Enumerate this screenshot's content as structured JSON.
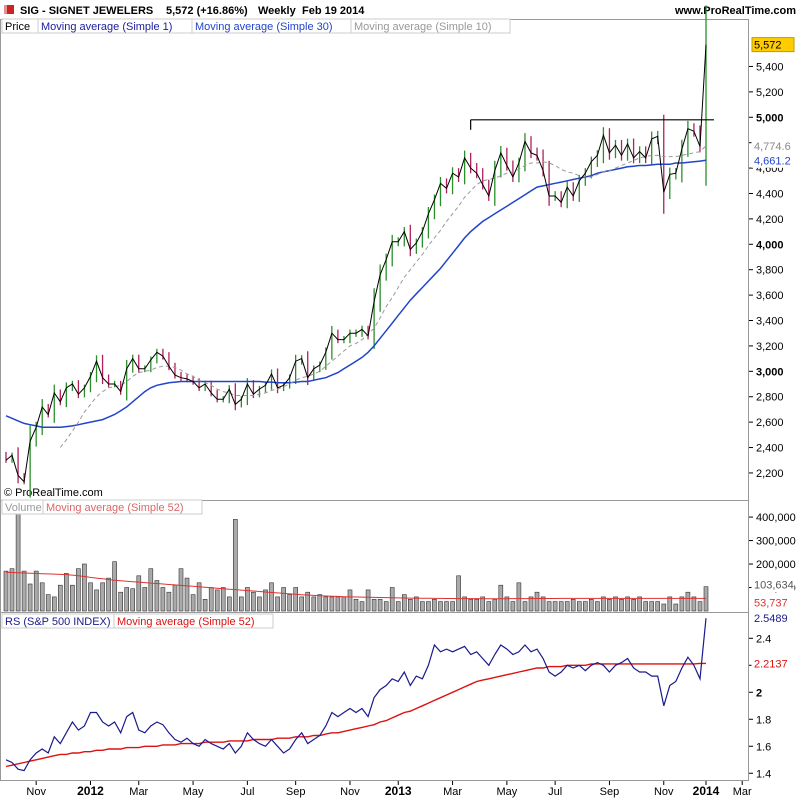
{
  "header": {
    "title": "SIG - SIGNET JEWELERS",
    "change": "5,572 (+16.86%)",
    "period": "Weekly",
    "date": "Feb 19 2014",
    "site": "www.ProRealTime.com"
  },
  "watermark": "© ProRealTime.com",
  "colors": {
    "up": "#2a8f2a",
    "down": "#b0205a",
    "ma1": "#000000",
    "ma30": "#2244cc",
    "ma10": "#999999",
    "rs": "#1a1a8c",
    "rs_ma": "#dd1111",
    "vol_ma": "#dd3333",
    "badge": "#ffcc00"
  },
  "chart_data": [
    {
      "type": "line",
      "panel": "price",
      "legend": [
        "Price",
        "Moving average (Simple 1)",
        "Moving average (Simple 30)",
        "Moving average (Simple 10)"
      ],
      "ylim": [
        2050,
        5750
      ],
      "yticks": [
        "2,200",
        "2,400",
        "2,600",
        "2,800",
        "3,000",
        "3,200",
        "3,400",
        "3,600",
        "3,800",
        "4,000",
        "4,200",
        "4,400",
        "4,600",
        "4,800",
        "5,000",
        "5,200",
        "5,400"
      ],
      "ybold": [
        "3,000",
        "4,000",
        "5,000"
      ],
      "xlabels": [
        "Nov",
        "2012",
        "Mar",
        "May",
        "Jul",
        "Sep",
        "Nov",
        "2013",
        "Mar",
        "May",
        "Jul",
        "Sep",
        "Nov",
        "2014",
        "Mar"
      ],
      "last_value": "5,572",
      "ma10_value": "4,774.6",
      "ma30_value": "4,661.2",
      "resistance_level": 4980,
      "close": [
        2300,
        2340,
        2180,
        2130,
        2450,
        2560,
        2720,
        2660,
        2830,
        2760,
        2870,
        2900,
        2820,
        2870,
        2960,
        3080,
        2950,
        2900,
        2900,
        2840,
        3020,
        3100,
        3020,
        3020,
        3090,
        3150,
        3120,
        3040,
        2970,
        2950,
        2940,
        2920,
        2870,
        2900,
        2830,
        2780,
        2780,
        2860,
        2740,
        2780,
        2900,
        2820,
        2860,
        2890,
        2980,
        2870,
        2890,
        2950,
        3080,
        3100,
        2950,
        3020,
        3050,
        3150,
        3300,
        3250,
        3250,
        3300,
        3300,
        3330,
        3280,
        3550,
        3760,
        3880,
        4020,
        4020,
        4100,
        3960,
        4010,
        4100,
        4240,
        4350,
        4480,
        4440,
        4560,
        4530,
        4680,
        4600,
        4560,
        4470,
        4380,
        4580,
        4720,
        4620,
        4530,
        4640,
        4810,
        4720,
        4700,
        4580,
        4380,
        4380,
        4330,
        4450,
        4380,
        4500,
        4560,
        4650,
        4700,
        4860,
        4720,
        4780,
        4700,
        4790,
        4680,
        4730,
        4680,
        4830,
        4850,
        4410,
        4550,
        4560,
        4750,
        4910,
        4890,
        4770,
        5572
      ],
      "ma10": [
        null,
        null,
        null,
        null,
        null,
        null,
        null,
        null,
        null,
        2400,
        2460,
        2530,
        2600,
        2680,
        2740,
        2800,
        2840,
        2870,
        2880,
        2890,
        2920,
        2960,
        2990,
        3000,
        3010,
        3030,
        3040,
        3040,
        3030,
        3010,
        2980,
        2960,
        2930,
        2910,
        2890,
        2860,
        2840,
        2830,
        2810,
        2810,
        2810,
        2810,
        2820,
        2830,
        2850,
        2860,
        2880,
        2900,
        2930,
        2950,
        2960,
        2980,
        3000,
        3040,
        3080,
        3120,
        3160,
        3200,
        3220,
        3250,
        3290,
        3340,
        3420,
        3510,
        3580,
        3660,
        3740,
        3800,
        3860,
        3920,
        3990,
        4050,
        4110,
        4180,
        4240,
        4300,
        4370,
        4420,
        4470,
        4500,
        4510,
        4520,
        4540,
        4560,
        4570,
        4590,
        4620,
        4640,
        4640,
        4650,
        4640,
        4620,
        4590,
        4570,
        4560,
        4540,
        4530,
        4530,
        4550,
        4570,
        4580,
        4600,
        4620,
        4640,
        4660,
        4680,
        4690,
        4700,
        4700,
        4690,
        4690,
        4690,
        4700,
        4710,
        4720,
        4730,
        4774.6
      ],
      "ma30": [
        2650,
        2630,
        2610,
        2590,
        2580,
        2570,
        2560,
        2560,
        2560,
        2560,
        2565,
        2570,
        2580,
        2590,
        2600,
        2610,
        2620,
        2640,
        2660,
        2690,
        2720,
        2760,
        2800,
        2840,
        2870,
        2890,
        2900,
        2910,
        2915,
        2920,
        2920,
        2920,
        2920,
        2920,
        2920,
        2920,
        2920,
        2920,
        2920,
        2920,
        2920,
        2920,
        2920,
        2915,
        2915,
        2910,
        2910,
        2910,
        2915,
        2920,
        2920,
        2930,
        2940,
        2950,
        2970,
        2990,
        3020,
        3050,
        3080,
        3110,
        3150,
        3200,
        3260,
        3320,
        3380,
        3440,
        3500,
        3560,
        3610,
        3660,
        3710,
        3760,
        3810,
        3870,
        3930,
        3990,
        4050,
        4100,
        4140,
        4180,
        4210,
        4240,
        4270,
        4300,
        4330,
        4360,
        4390,
        4420,
        4450,
        4460,
        4470,
        4480,
        4490,
        4500,
        4510,
        4520,
        4530,
        4540,
        4560,
        4570,
        4580,
        4590,
        4600,
        4610,
        4615,
        4620,
        4620,
        4625,
        4630,
        4630,
        4630,
        4640,
        4640,
        4645,
        4650,
        4655,
        4661.2
      ]
    },
    {
      "type": "bar",
      "panel": "volume",
      "legend": [
        "Volume",
        "Moving average (Simple 52)"
      ],
      "ylim": [
        0,
        460000
      ],
      "yticks": [
        "100,000",
        "200,000",
        "300,000",
        "400,000"
      ],
      "last_value": "103,634",
      "ma_value": "53,737",
      "values": [
        170000,
        180000,
        450000,
        170000,
        115000,
        170000,
        120000,
        70000,
        60000,
        110000,
        160000,
        110000,
        180000,
        200000,
        120000,
        90000,
        120000,
        140000,
        210000,
        80000,
        100000,
        95000,
        150000,
        100000,
        180000,
        130000,
        100000,
        80000,
        110000,
        180000,
        140000,
        70000,
        120000,
        50000,
        100000,
        90000,
        100000,
        60000,
        390000,
        60000,
        100000,
        80000,
        60000,
        90000,
        120000,
        60000,
        100000,
        70000,
        100000,
        60000,
        80000,
        60000,
        70000,
        60000,
        60000,
        60000,
        60000,
        90000,
        50000,
        40000,
        90000,
        50000,
        50000,
        40000,
        100000,
        40000,
        70000,
        50000,
        60000,
        40000,
        40000,
        50000,
        40000,
        40000,
        40000,
        150000,
        60000,
        50000,
        50000,
        60000,
        40000,
        50000,
        110000,
        60000,
        40000,
        120000,
        40000,
        60000,
        80000,
        60000,
        40000,
        40000,
        40000,
        40000,
        50000,
        40000,
        40000,
        50000,
        40000,
        60000,
        50000,
        60000,
        50000,
        60000,
        50000,
        60000,
        40000,
        40000,
        40000,
        30000,
        60000,
        30000,
        60000,
        80000,
        60000,
        40000,
        103634
      ],
      "ma": [
        165000,
        164000,
        163000,
        162000,
        161000,
        160000,
        159000,
        158000,
        157000,
        156000,
        155000,
        153000,
        150000,
        147000,
        143000,
        140000,
        137000,
        134000,
        131000,
        129000,
        127000,
        125000,
        123000,
        121000,
        119000,
        117000,
        115000,
        113000,
        111000,
        109000,
        107000,
        105000,
        103000,
        101000,
        99000,
        97000,
        95000,
        93000,
        91000,
        89000,
        87000,
        85000,
        83000,
        81000,
        79000,
        77000,
        75000,
        73000,
        71000,
        69500,
        68000,
        66500,
        65000,
        64000,
        63000,
        62000,
        61000,
        60000,
        59500,
        59000,
        58500,
        58000,
        57500,
        57000,
        56500,
        56000,
        55500,
        55000,
        54700,
        54400,
        54100,
        53800,
        53500,
        53300,
        53100,
        53000,
        52900,
        52800,
        52700,
        52600,
        52500,
        52500,
        52500,
        52600,
        52700,
        52800,
        52900,
        53000,
        53100,
        53200,
        53300,
        53400,
        53500,
        53550,
        53600,
        53650,
        53700,
        53720,
        53740,
        53760,
        53780,
        53800,
        53800,
        53790,
        53780,
        53770,
        53760,
        53750,
        53745,
        53740,
        53738,
        53737,
        53737,
        53737,
        53737,
        53737,
        53737
      ]
    },
    {
      "type": "line",
      "panel": "rs",
      "legend": [
        "RS (S&P 500 INDEX)",
        "Moving average (Simple 52)"
      ],
      "ylim": [
        1.35,
        2.58
      ],
      "yticks": [
        "1.4",
        "1.6",
        "1.8",
        "2",
        "2.2",
        "2.4"
      ],
      "ybold": [
        "2"
      ],
      "last_value": "2.5489",
      "ma_value": "2.2137",
      "rs": [
        1.5,
        1.48,
        1.43,
        1.42,
        1.5,
        1.55,
        1.58,
        1.55,
        1.67,
        1.62,
        1.7,
        1.78,
        1.72,
        1.75,
        1.85,
        1.85,
        1.78,
        1.75,
        1.78,
        1.7,
        1.82,
        1.85,
        1.72,
        1.7,
        1.75,
        1.78,
        1.76,
        1.7,
        1.65,
        1.63,
        1.66,
        1.62,
        1.6,
        1.65,
        1.62,
        1.6,
        1.58,
        1.62,
        1.55,
        1.6,
        1.7,
        1.65,
        1.62,
        1.6,
        1.65,
        1.6,
        1.55,
        1.58,
        1.65,
        1.7,
        1.62,
        1.65,
        1.68,
        1.75,
        1.85,
        1.82,
        1.85,
        1.88,
        1.85,
        1.88,
        1.82,
        1.96,
        2.02,
        2.05,
        2.1,
        2.08,
        2.15,
        2.05,
        2.12,
        2.1,
        2.2,
        2.35,
        2.3,
        2.32,
        2.3,
        2.32,
        2.34,
        2.28,
        2.3,
        2.25,
        2.2,
        2.28,
        2.35,
        2.32,
        2.28,
        2.3,
        2.35,
        2.3,
        2.32,
        2.25,
        2.15,
        2.12,
        2.15,
        2.2,
        2.18,
        2.2,
        2.16,
        2.2,
        2.22,
        2.2,
        2.15,
        2.2,
        2.22,
        2.25,
        2.18,
        2.15,
        2.15,
        2.12,
        2.12,
        1.9,
        2.05,
        2.08,
        2.18,
        2.26,
        2.2,
        2.1,
        2.5489
      ],
      "ma": [
        1.45,
        1.46,
        1.47,
        1.48,
        1.49,
        1.5,
        1.51,
        1.52,
        1.53,
        1.54,
        1.54,
        1.55,
        1.55,
        1.56,
        1.56,
        1.57,
        1.57,
        1.58,
        1.58,
        1.58,
        1.59,
        1.59,
        1.59,
        1.6,
        1.6,
        1.6,
        1.61,
        1.61,
        1.61,
        1.62,
        1.62,
        1.62,
        1.62,
        1.63,
        1.63,
        1.63,
        1.63,
        1.64,
        1.64,
        1.64,
        1.64,
        1.65,
        1.65,
        1.65,
        1.65,
        1.66,
        1.66,
        1.66,
        1.67,
        1.67,
        1.67,
        1.68,
        1.68,
        1.69,
        1.7,
        1.7,
        1.71,
        1.72,
        1.73,
        1.74,
        1.75,
        1.76,
        1.78,
        1.79,
        1.81,
        1.83,
        1.85,
        1.86,
        1.88,
        1.9,
        1.92,
        1.94,
        1.96,
        1.98,
        2.0,
        2.02,
        2.04,
        2.06,
        2.08,
        2.09,
        2.1,
        2.11,
        2.12,
        2.13,
        2.14,
        2.15,
        2.16,
        2.17,
        2.18,
        2.18,
        2.19,
        2.19,
        2.19,
        2.2,
        2.2,
        2.2,
        2.2,
        2.21,
        2.21,
        2.21,
        2.21,
        2.21,
        2.21,
        2.21,
        2.21,
        2.21,
        2.21,
        2.21,
        2.21,
        2.21,
        2.21,
        2.21,
        2.21,
        2.21,
        2.21,
        2.2137,
        2.2137
      ]
    }
  ]
}
